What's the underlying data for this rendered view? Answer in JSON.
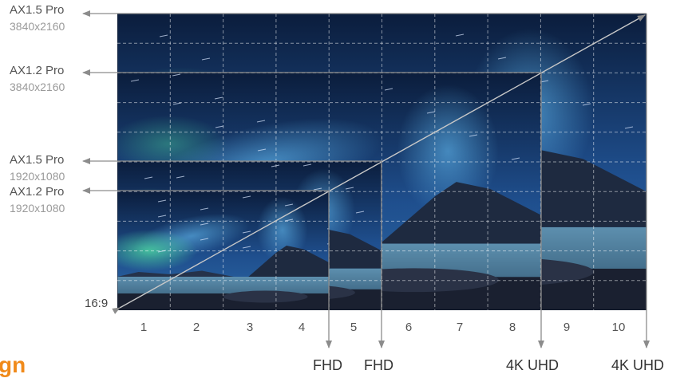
{
  "screens": [
    {
      "model": "AX1.5 Pro",
      "resolution": "3840x2160"
    },
    {
      "model": "AX1.2 Pro",
      "resolution": "3840x2160"
    },
    {
      "model": "AX1.5 Pro",
      "resolution": "1920x1080"
    },
    {
      "model": "AX1.2 Pro",
      "resolution": "1920x1080"
    }
  ],
  "aspect_ratio_label": "16:9",
  "grid_columns": [
    "1",
    "2",
    "3",
    "4",
    "5",
    "6",
    "7",
    "8",
    "9",
    "10"
  ],
  "bottom_labels": [
    "FHD",
    "FHD",
    "4K UHD",
    "4K UHD"
  ],
  "logo_fragment": "gn",
  "colors": {
    "sky_dark": "#0b1d3c",
    "sky_blue": "#1f5596",
    "aurora_green": "#3fd08a",
    "water": "#5d8fae",
    "arrow_gray": "#8c8c8c",
    "label_gray": "#555555",
    "res_gray": "#9a9a9a",
    "logo_orange": "#f08a1a"
  }
}
